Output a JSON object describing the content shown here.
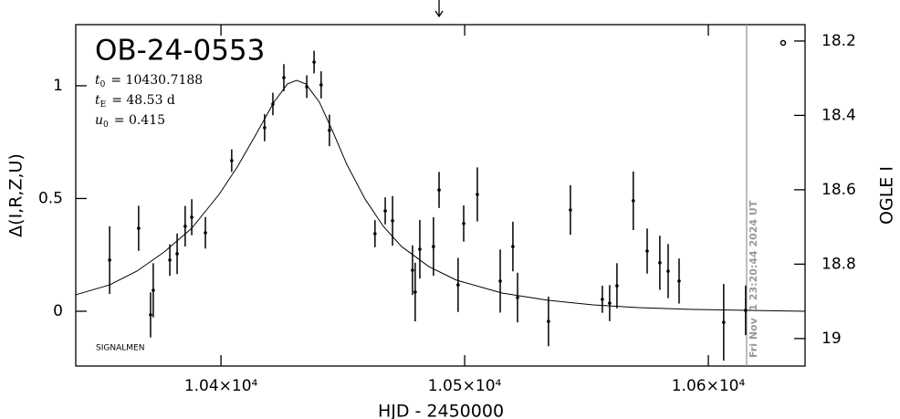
{
  "chart_data": {
    "type": "scatter",
    "title": "OB-24-0553",
    "params": [
      {
        "symbol": "t",
        "subscript": "0",
        "text": "= 10430.7188"
      },
      {
        "symbol": "t",
        "subscript": "E",
        "text": "= 48.53 d"
      },
      {
        "symbol": "u",
        "subscript": "0",
        "text": "= 0.415"
      }
    ],
    "credit": "SIGNALMEN",
    "x_label": "HJD - 2450000",
    "y_label": "Δ(I,R,Z,U)",
    "y2_label": "OGLE I",
    "x": [
      10354.3,
      10366.2,
      10371.1,
      10372.2,
      10379.0,
      10382.0,
      10385.3,
      10388.0,
      10393.6,
      10404.4,
      10417.9,
      10421.3,
      10425.8,
      10435.2,
      10438.2,
      10441.1,
      10444.5,
      10463.2,
      10467.4,
      10470.4,
      10478.6,
      10479.7,
      10481.6,
      10487.2,
      10489.5,
      10497.3,
      10499.6,
      10505.2,
      10514.6,
      10519.8,
      10521.7,
      10534.4,
      10543.4,
      10556.5,
      10559.5,
      10562.5,
      10569.2,
      10574.9,
      10580.1,
      10583.5,
      10588.0,
      10606.3,
      10615.3
    ],
    "values": [
      0.227,
      0.368,
      -0.016,
      0.093,
      0.227,
      0.255,
      0.377,
      0.417,
      0.348,
      0.668,
      0.814,
      0.919,
      1.036,
      0.996,
      1.105,
      1.004,
      0.802,
      0.344,
      0.445,
      0.401,
      0.182,
      0.085,
      0.275,
      0.287,
      0.538,
      0.117,
      0.389,
      0.518,
      0.134,
      0.287,
      0.061,
      -0.045,
      0.449,
      0.053,
      0.036,
      0.113,
      0.49,
      0.267,
      0.215,
      0.178,
      0.134,
      -0.049,
      0.004
    ],
    "errors": [
      0.15,
      0.1,
      0.1,
      0.12,
      0.07,
      0.09,
      0.09,
      0.08,
      0.07,
      0.05,
      0.06,
      0.05,
      0.06,
      0.05,
      0.05,
      0.06,
      0.07,
      0.06,
      0.06,
      0.11,
      0.11,
      0.13,
      0.13,
      0.13,
      0.08,
      0.12,
      0.08,
      0.12,
      0.14,
      0.11,
      0.11,
      0.11,
      0.11,
      0.06,
      0.08,
      0.1,
      0.13,
      0.1,
      0.12,
      0.12,
      0.1,
      0.17,
      0.11
    ],
    "extra_point": {
      "x": 10630.7,
      "value": 1.19
    },
    "model": {
      "x": [
        10340.4,
        10354.3,
        10365.5,
        10376.7,
        10388.0,
        10399.2,
        10406.7,
        10414.2,
        10421.7,
        10427.3,
        10431.0,
        10434.8,
        10440.4,
        10446.0,
        10451.6,
        10459.1,
        10466.6,
        10474.1,
        10485.3,
        10496.6,
        10515.3,
        10534.0,
        10552.8,
        10571.5,
        10593.9,
        10616.4,
        10639.6
      ],
      "values": [
        0.073,
        0.117,
        0.178,
        0.263,
        0.368,
        0.518,
        0.64,
        0.781,
        0.927,
        1.008,
        1.024,
        1.008,
        0.927,
        0.794,
        0.652,
        0.498,
        0.377,
        0.287,
        0.198,
        0.138,
        0.081,
        0.049,
        0.028,
        0.016,
        0.008,
        0.004,
        0.0
      ]
    },
    "now_line": {
      "x": 10615.7,
      "label": "Fri Nov  1 23:20:44 2024 UT"
    },
    "arrow_x": 10489.5,
    "xlim": [
      10340.4,
      10639.7
    ],
    "xticks": [
      {
        "value": 10400,
        "label": "1.04×10⁴"
      },
      {
        "value": 10500,
        "label": "1.05×10⁴"
      },
      {
        "value": 10600,
        "label": "1.06×10⁴"
      }
    ],
    "ylim": [
      -0.243,
      1.271
    ],
    "yticks": [
      0,
      0.5,
      1
    ],
    "y2lim": [
      19.074,
      18.156
    ],
    "y2ticks": [
      18.2,
      18.4,
      18.6,
      18.8,
      19
    ],
    "color": "#000000",
    "now_color": "#999999"
  }
}
